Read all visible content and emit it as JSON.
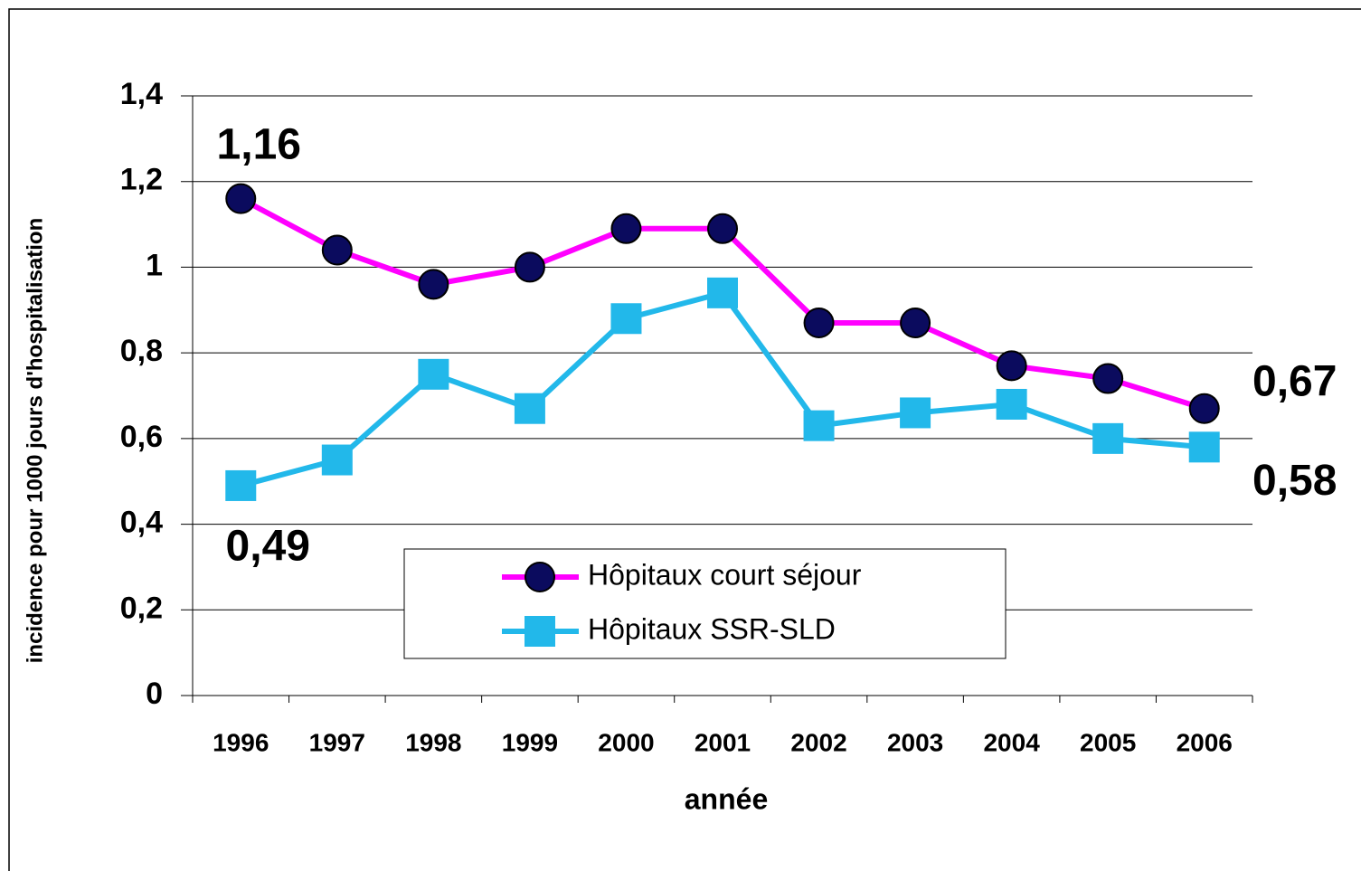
{
  "chart_data": {
    "type": "line",
    "xlabel": "année",
    "ylabel": "incidence pour 1000 jours d'hospitalisation",
    "categories": [
      "1996",
      "1997",
      "1998",
      "1999",
      "2000",
      "2001",
      "2002",
      "2003",
      "2004",
      "2005",
      "2006"
    ],
    "series": [
      {
        "name": "Hôpitaux court séjour",
        "color": "#ff00ff",
        "marker": "circle",
        "marker_color": "#0b0b5e",
        "values": [
          1.16,
          1.04,
          0.96,
          1.0,
          1.09,
          1.09,
          0.87,
          0.87,
          0.77,
          0.74,
          0.67
        ],
        "value_labels": [
          "1,16",
          null,
          null,
          null,
          null,
          null,
          null,
          null,
          null,
          null,
          "0,67"
        ]
      },
      {
        "name": "Hôpitaux SSR-SLD",
        "color": "#22b8ea",
        "marker": "square",
        "marker_color": "#22b8ea",
        "values": [
          0.49,
          0.55,
          0.75,
          0.67,
          0.88,
          0.94,
          0.63,
          0.66,
          0.68,
          0.6,
          0.58
        ],
        "value_labels": [
          "0,49",
          null,
          null,
          null,
          null,
          null,
          null,
          null,
          null,
          null,
          "0,58"
        ]
      }
    ],
    "ylim": [
      0,
      1.4
    ],
    "yticks": [
      0,
      {
        "value": 0.2,
        "label": "0,2"
      },
      {
        "value": 0.4,
        "label": "0,4"
      },
      {
        "value": 0.6,
        "label": "0,6"
      },
      {
        "value": 0.8,
        "label": "0,8"
      },
      1,
      {
        "value": 1.2,
        "label": "1,2"
      },
      {
        "value": 1.4,
        "label": "1,4"
      }
    ],
    "grid": true,
    "legend": "bottom"
  }
}
